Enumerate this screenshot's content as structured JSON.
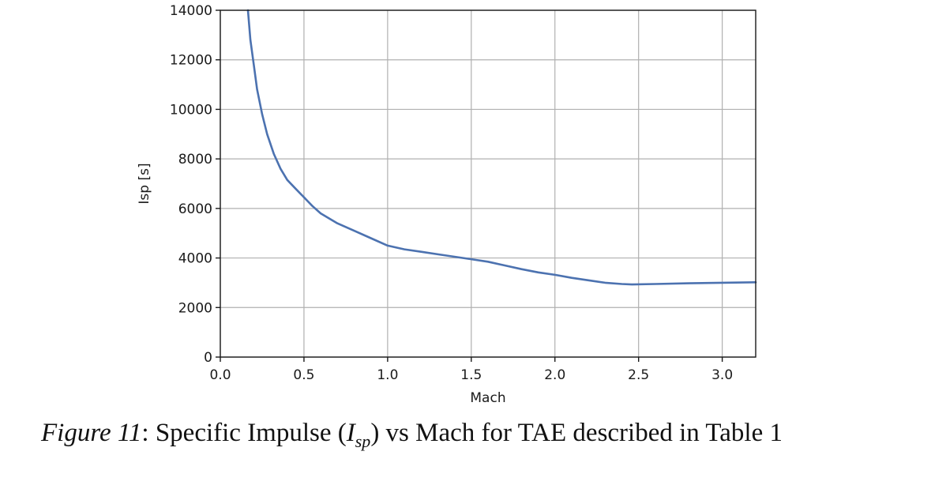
{
  "chart_data": {
    "type": "line",
    "title": "",
    "xlabel": "Mach",
    "ylabel": "Isp [s]",
    "xlim": [
      0.0,
      3.2
    ],
    "ylim": [
      0,
      14000
    ],
    "xticks": [
      0.0,
      0.5,
      1.0,
      1.5,
      2.0,
      2.5,
      3.0
    ],
    "xtick_labels": [
      "0.0",
      "0.5",
      "1.0",
      "1.5",
      "2.0",
      "2.5",
      "3.0"
    ],
    "yticks": [
      0,
      2000,
      4000,
      6000,
      8000,
      10000,
      12000,
      14000
    ],
    "ytick_labels": [
      "0",
      "2000",
      "4000",
      "6000",
      "8000",
      "10000",
      "12000",
      "14000"
    ],
    "grid": true,
    "series": [
      {
        "name": "Isp",
        "color": "#4c72b0",
        "x": [
          0.165,
          0.18,
          0.2,
          0.22,
          0.25,
          0.28,
          0.32,
          0.36,
          0.4,
          0.45,
          0.5,
          0.55,
          0.6,
          0.7,
          0.8,
          0.9,
          1.0,
          1.1,
          1.2,
          1.3,
          1.4,
          1.5,
          1.6,
          1.7,
          1.8,
          1.9,
          2.0,
          2.1,
          2.2,
          2.3,
          2.4,
          2.46,
          2.6,
          2.8,
          3.0,
          3.2
        ],
        "values": [
          14000,
          12800,
          11800,
          10800,
          9800,
          9000,
          8200,
          7600,
          7150,
          6800,
          6450,
          6100,
          5800,
          5400,
          5100,
          4800,
          4500,
          4350,
          4250,
          4150,
          4050,
          3950,
          3850,
          3700,
          3550,
          3420,
          3320,
          3200,
          3100,
          3000,
          2950,
          2930,
          2950,
          2980,
          3000,
          3020
        ]
      }
    ]
  },
  "caption": {
    "figure_label": "Figure 11",
    "text_before_symbol": ": Specific Impulse (",
    "symbol_main": "I",
    "symbol_sub": "sp",
    "text_after_symbol": ") vs Mach for TAE described in Table 1"
  }
}
